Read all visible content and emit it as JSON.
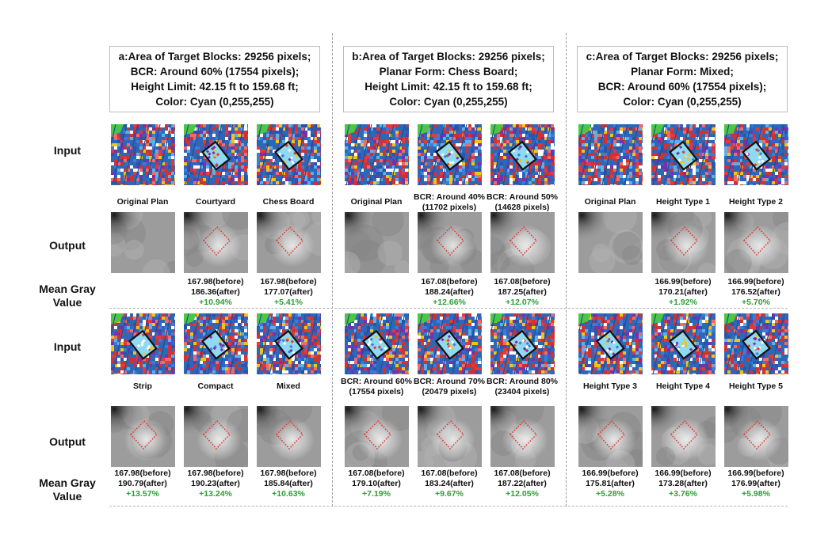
{
  "row_labels": {
    "input_top": "Input",
    "output_top": "Output",
    "mean_top": [
      "Mean Gray",
      "Value"
    ],
    "input_bottom": "Input",
    "output_bottom": "Output",
    "mean_bottom": [
      "Mean Gray",
      "Value"
    ]
  },
  "panels": [
    {
      "id": "a",
      "header": [
        "a:Area of Target Blocks: 29256 pixels;",
        "BCR: Around 60% (17554 pixels);",
        "Height Limit: 42.15 ft to 159.68 ft;",
        "Color: Cyan (0,255,255)"
      ],
      "top_captions": [
        [
          "Original Plan"
        ],
        [
          "Courtyard"
        ],
        [
          "Chess Board"
        ]
      ],
      "top_stats": [
        null,
        {
          "before": "167.98(before)",
          "after": "186.36(after)",
          "change": "+10.94%"
        },
        {
          "before": "167.98(before)",
          "after": "177.07(after)",
          "change": "+5.41%"
        }
      ],
      "bottom_captions": [
        [
          "Strip"
        ],
        [
          "Compact"
        ],
        [
          "Mixed"
        ]
      ],
      "bottom_stats": [
        {
          "before": "167.98(before)",
          "after": "190.79(after)",
          "change": "+13.57%"
        },
        {
          "before": "167.98(before)",
          "after": "190.23(after)",
          "change": "+13.24%"
        },
        {
          "before": "167.98(before)",
          "after": "185.84(after)",
          "change": "+10.63%"
        }
      ]
    },
    {
      "id": "b",
      "header": [
        "b:Area of Target Blocks: 29256 pixels;",
        "Planar Form: Chess Board;",
        "Height Limit: 42.15 ft to 159.68 ft;",
        "Color: Cyan (0,255,255)"
      ],
      "top_captions": [
        [
          "Original Plan"
        ],
        [
          "BCR: Around 40%",
          "(11702 pixels)"
        ],
        [
          "BCR: Around 50%",
          "(14628 pixels)"
        ]
      ],
      "top_stats": [
        null,
        {
          "before": "167.08(before)",
          "after": "188.24(after)",
          "change": "+12.66%"
        },
        {
          "before": "167.08(before)",
          "after": "187.25(after)",
          "change": "+12.07%"
        }
      ],
      "bottom_captions": [
        [
          "BCR: Around 60%",
          "(17554 pixels)"
        ],
        [
          "BCR: Around 70%",
          "(20479 pixels)"
        ],
        [
          "BCR: Around 80%",
          "(23404 pixels)"
        ]
      ],
      "bottom_stats": [
        {
          "before": "167.08(before)",
          "after": "179.10(after)",
          "change": "+7.19%"
        },
        {
          "before": "167.08(before)",
          "after": "183.24(after)",
          "change": "+9.67%"
        },
        {
          "before": "167.08(before)",
          "after": "187.22(after)",
          "change": "+12.05%"
        }
      ]
    },
    {
      "id": "c",
      "header": [
        "c:Area of Target Blocks: 29256 pixels;",
        "Planar Form: Mixed;",
        "BCR: Around 60% (17554 pixels);",
        "Color: Cyan (0,255,255)"
      ],
      "top_captions": [
        [
          "Original Plan"
        ],
        [
          "Height Type 1"
        ],
        [
          "Height Type 2"
        ]
      ],
      "top_stats": [
        null,
        {
          "before": "166.99(before)",
          "after": "170.21(after)",
          "change": "+1.92%"
        },
        {
          "before": "166.99(before)",
          "after": "176.52(after)",
          "change": "+5.70%"
        }
      ],
      "bottom_captions": [
        [
          "Height Type 3"
        ],
        [
          "Height Type 4"
        ],
        [
          "Height Type 5"
        ]
      ],
      "bottom_stats": [
        {
          "before": "166.99(before)",
          "after": "175.81(after)",
          "change": "+5.28%"
        },
        {
          "before": "166.99(before)",
          "after": "173.28(after)",
          "change": "+3.76%"
        },
        {
          "before": "166.99(before)",
          "after": "176.99(after)",
          "change": "+5.98%"
        }
      ]
    }
  ],
  "colors": {
    "target_block": "#00ffff",
    "percent_text": "#2e9e3a",
    "box_outline": "#111111",
    "dotted_box": "#e53935"
  }
}
